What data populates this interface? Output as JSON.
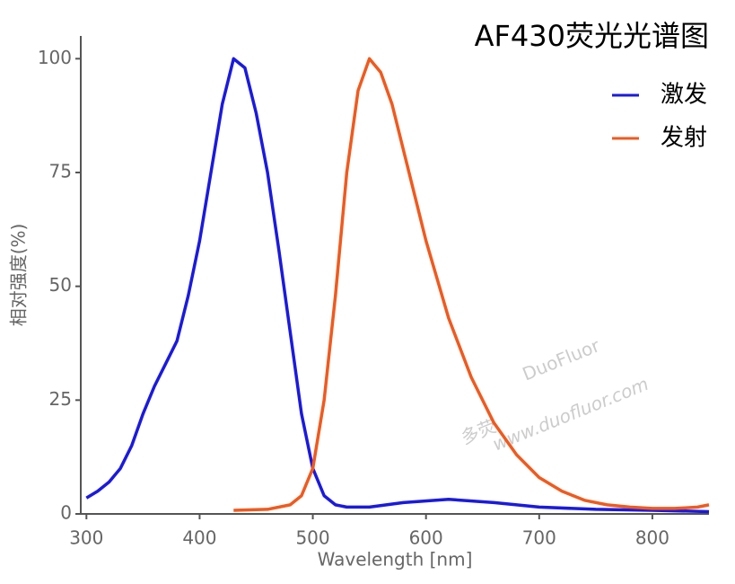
{
  "chart_data": {
    "type": "line",
    "title": "AF430荧光光谱图",
    "x_label": "Wavelength [nm]",
    "y_label": "相对强度(%)",
    "xlim": [
      295,
      850
    ],
    "xticks": [
      300,
      400,
      500,
      600,
      700,
      800
    ],
    "ylim": [
      0,
      105
    ],
    "yticks": [
      0,
      25,
      50,
      75,
      100
    ],
    "legend": "upper right",
    "watermark": [
      "多荧",
      "DuoFluor",
      "www.duofluor.com"
    ],
    "series": [
      {
        "name": "激发",
        "color": "#1a1adf",
        "x": [
          300,
          310,
          320,
          330,
          340,
          350,
          360,
          370,
          380,
          390,
          400,
          410,
          420,
          430,
          440,
          450,
          460,
          470,
          480,
          490,
          500,
          510,
          520,
          530,
          550,
          580,
          620,
          660,
          700,
          750,
          800,
          850
        ],
        "values": [
          3.5,
          5,
          7,
          10,
          15,
          22,
          28,
          33,
          38,
          48,
          60,
          75,
          90,
          100,
          98,
          88,
          75,
          58,
          40,
          22,
          10,
          4,
          2,
          1.5,
          1.5,
          2.5,
          3.2,
          2.5,
          1.5,
          1,
          0.8,
          0.5
        ]
      },
      {
        "name": "发射",
        "color": "#f05a1e",
        "x": [
          430,
          460,
          480,
          490,
          500,
          510,
          520,
          530,
          540,
          550,
          560,
          570,
          580,
          590,
          600,
          620,
          640,
          660,
          680,
          700,
          720,
          740,
          760,
          780,
          800,
          820,
          840,
          850
        ],
        "values": [
          0.8,
          1,
          2,
          4,
          10,
          25,
          48,
          75,
          93,
          100,
          97,
          90,
          80,
          70,
          60,
          43,
          30,
          20,
          13,
          8,
          5,
          3,
          2,
          1.5,
          1.2,
          1.2,
          1.5,
          2
        ]
      }
    ]
  }
}
